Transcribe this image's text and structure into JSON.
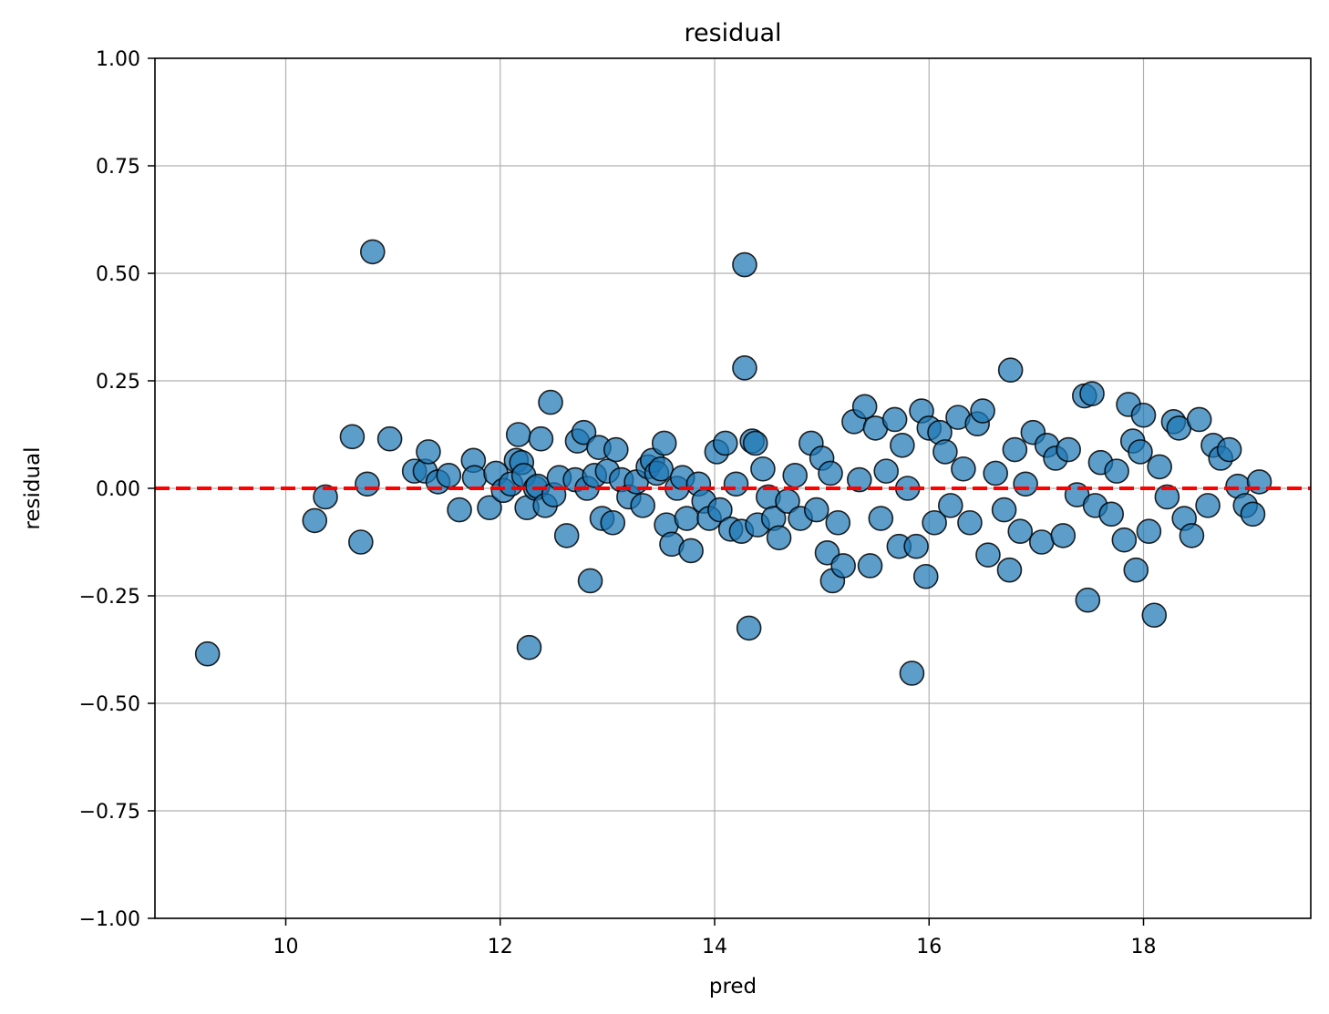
{
  "chart_data": {
    "type": "scatter",
    "title": "residual",
    "xlabel": "pred",
    "ylabel": "residual",
    "xlim": [
      8.78,
      19.56
    ],
    "ylim": [
      -1.0,
      1.0
    ],
    "xticks": [
      10,
      12,
      14,
      16,
      18
    ],
    "xtick_labels": [
      "10",
      "12",
      "14",
      "16",
      "18"
    ],
    "yticks": [
      1.0,
      0.75,
      0.5,
      0.25,
      0.0,
      -0.25,
      -0.5,
      -0.75,
      -1.0
    ],
    "ytick_labels": [
      "1.00",
      "0.75",
      "0.50",
      "0.25",
      "0.00",
      "−0.25",
      "−0.50",
      "−0.75",
      "−1.00"
    ],
    "grid": true,
    "reference_line": {
      "y": 0.0,
      "style": "dashed",
      "color": "#ff0000"
    },
    "marker_color": "#1f77b4",
    "marker_edge_color": "#000000",
    "series": [
      {
        "points": [
          [
            9.27,
            -0.385
          ],
          [
            10.27,
            -0.075
          ],
          [
            10.37,
            -0.02
          ],
          [
            10.62,
            0.12
          ],
          [
            10.7,
            -0.125
          ],
          [
            10.76,
            0.01
          ],
          [
            10.81,
            0.55
          ],
          [
            10.97,
            0.115
          ],
          [
            11.2,
            0.04
          ],
          [
            11.3,
            0.04
          ],
          [
            11.33,
            0.085
          ],
          [
            11.42,
            0.015
          ],
          [
            11.52,
            0.03
          ],
          [
            11.62,
            -0.05
          ],
          [
            11.75,
            0.065
          ],
          [
            11.76,
            0.025
          ],
          [
            11.9,
            -0.045
          ],
          [
            11.96,
            0.035
          ],
          [
            12.03,
            -0.005
          ],
          [
            12.1,
            0.01
          ],
          [
            12.15,
            0.065
          ],
          [
            12.17,
            0.125
          ],
          [
            12.2,
            0.06
          ],
          [
            12.22,
            0.03
          ],
          [
            12.25,
            -0.045
          ],
          [
            12.27,
            -0.37
          ],
          [
            12.33,
            0.0
          ],
          [
            12.35,
            0.005
          ],
          [
            12.38,
            0.115
          ],
          [
            12.42,
            -0.04
          ],
          [
            12.47,
            0.2
          ],
          [
            12.5,
            -0.015
          ],
          [
            12.55,
            0.025
          ],
          [
            12.62,
            -0.11
          ],
          [
            12.7,
            0.02
          ],
          [
            12.72,
            0.11
          ],
          [
            12.78,
            0.13
          ],
          [
            12.81,
            0.0
          ],
          [
            12.84,
            -0.215
          ],
          [
            12.88,
            0.03
          ],
          [
            12.92,
            0.095
          ],
          [
            12.95,
            -0.07
          ],
          [
            13.0,
            0.04
          ],
          [
            13.05,
            -0.08
          ],
          [
            13.08,
            0.09
          ],
          [
            13.13,
            0.02
          ],
          [
            13.2,
            -0.02
          ],
          [
            13.27,
            0.015
          ],
          [
            13.33,
            -0.04
          ],
          [
            13.38,
            0.05
          ],
          [
            13.42,
            0.065
          ],
          [
            13.46,
            0.035
          ],
          [
            13.5,
            0.045
          ],
          [
            13.53,
            0.105
          ],
          [
            13.55,
            -0.085
          ],
          [
            13.6,
            -0.13
          ],
          [
            13.65,
            0.0
          ],
          [
            13.7,
            0.025
          ],
          [
            13.74,
            -0.07
          ],
          [
            13.78,
            -0.145
          ],
          [
            13.85,
            0.01
          ],
          [
            13.9,
            -0.03
          ],
          [
            13.95,
            -0.07
          ],
          [
            14.02,
            0.085
          ],
          [
            14.05,
            -0.05
          ],
          [
            14.1,
            0.105
          ],
          [
            14.15,
            -0.095
          ],
          [
            14.2,
            0.01
          ],
          [
            14.25,
            -0.1
          ],
          [
            14.28,
            0.52
          ],
          [
            14.28,
            0.28
          ],
          [
            14.32,
            -0.325
          ],
          [
            14.35,
            0.11
          ],
          [
            14.38,
            0.105
          ],
          [
            14.4,
            -0.085
          ],
          [
            14.45,
            0.045
          ],
          [
            14.5,
            -0.02
          ],
          [
            14.55,
            -0.07
          ],
          [
            14.6,
            -0.115
          ],
          [
            14.68,
            -0.03
          ],
          [
            14.75,
            0.03
          ],
          [
            14.8,
            -0.07
          ],
          [
            14.9,
            0.105
          ],
          [
            14.95,
            -0.05
          ],
          [
            15.0,
            0.07
          ],
          [
            15.05,
            -0.15
          ],
          [
            15.08,
            0.035
          ],
          [
            15.1,
            -0.215
          ],
          [
            15.15,
            -0.08
          ],
          [
            15.2,
            -0.18
          ],
          [
            15.3,
            0.155
          ],
          [
            15.35,
            0.02
          ],
          [
            15.4,
            0.19
          ],
          [
            15.45,
            -0.18
          ],
          [
            15.5,
            0.14
          ],
          [
            15.55,
            -0.07
          ],
          [
            15.6,
            0.04
          ],
          [
            15.68,
            0.16
          ],
          [
            15.72,
            -0.135
          ],
          [
            15.75,
            0.1
          ],
          [
            15.8,
            0.0
          ],
          [
            15.84,
            -0.43
          ],
          [
            15.88,
            -0.135
          ],
          [
            15.93,
            0.18
          ],
          [
            15.97,
            -0.205
          ],
          [
            16.0,
            0.14
          ],
          [
            16.05,
            -0.08
          ],
          [
            16.1,
            0.13
          ],
          [
            16.15,
            0.085
          ],
          [
            16.2,
            -0.04
          ],
          [
            16.27,
            0.165
          ],
          [
            16.32,
            0.045
          ],
          [
            16.38,
            -0.08
          ],
          [
            16.45,
            0.15
          ],
          [
            16.5,
            0.18
          ],
          [
            16.55,
            -0.155
          ],
          [
            16.62,
            0.035
          ],
          [
            16.7,
            -0.05
          ],
          [
            16.75,
            -0.19
          ],
          [
            16.76,
            0.275
          ],
          [
            16.8,
            0.09
          ],
          [
            16.85,
            -0.1
          ],
          [
            16.9,
            0.01
          ],
          [
            16.97,
            0.13
          ],
          [
            17.05,
            -0.125
          ],
          [
            17.1,
            0.1
          ],
          [
            17.18,
            0.07
          ],
          [
            17.25,
            -0.11
          ],
          [
            17.3,
            0.09
          ],
          [
            17.38,
            -0.015
          ],
          [
            17.45,
            0.215
          ],
          [
            17.48,
            -0.26
          ],
          [
            17.52,
            0.22
          ],
          [
            17.55,
            -0.04
          ],
          [
            17.6,
            0.06
          ],
          [
            17.7,
            -0.06
          ],
          [
            17.75,
            0.04
          ],
          [
            17.82,
            -0.12
          ],
          [
            17.86,
            0.195
          ],
          [
            17.9,
            0.11
          ],
          [
            17.93,
            -0.19
          ],
          [
            17.97,
            0.085
          ],
          [
            18.0,
            0.17
          ],
          [
            18.05,
            -0.1
          ],
          [
            18.1,
            -0.295
          ],
          [
            18.15,
            0.05
          ],
          [
            18.22,
            -0.02
          ],
          [
            18.28,
            0.155
          ],
          [
            18.33,
            0.14
          ],
          [
            18.38,
            -0.07
          ],
          [
            18.45,
            -0.11
          ],
          [
            18.52,
            0.16
          ],
          [
            18.6,
            -0.04
          ],
          [
            18.65,
            0.1
          ],
          [
            18.72,
            0.07
          ],
          [
            18.8,
            0.09
          ],
          [
            18.88,
            0.005
          ],
          [
            18.95,
            -0.04
          ],
          [
            19.02,
            -0.06
          ],
          [
            19.08,
            0.015
          ]
        ]
      }
    ]
  }
}
